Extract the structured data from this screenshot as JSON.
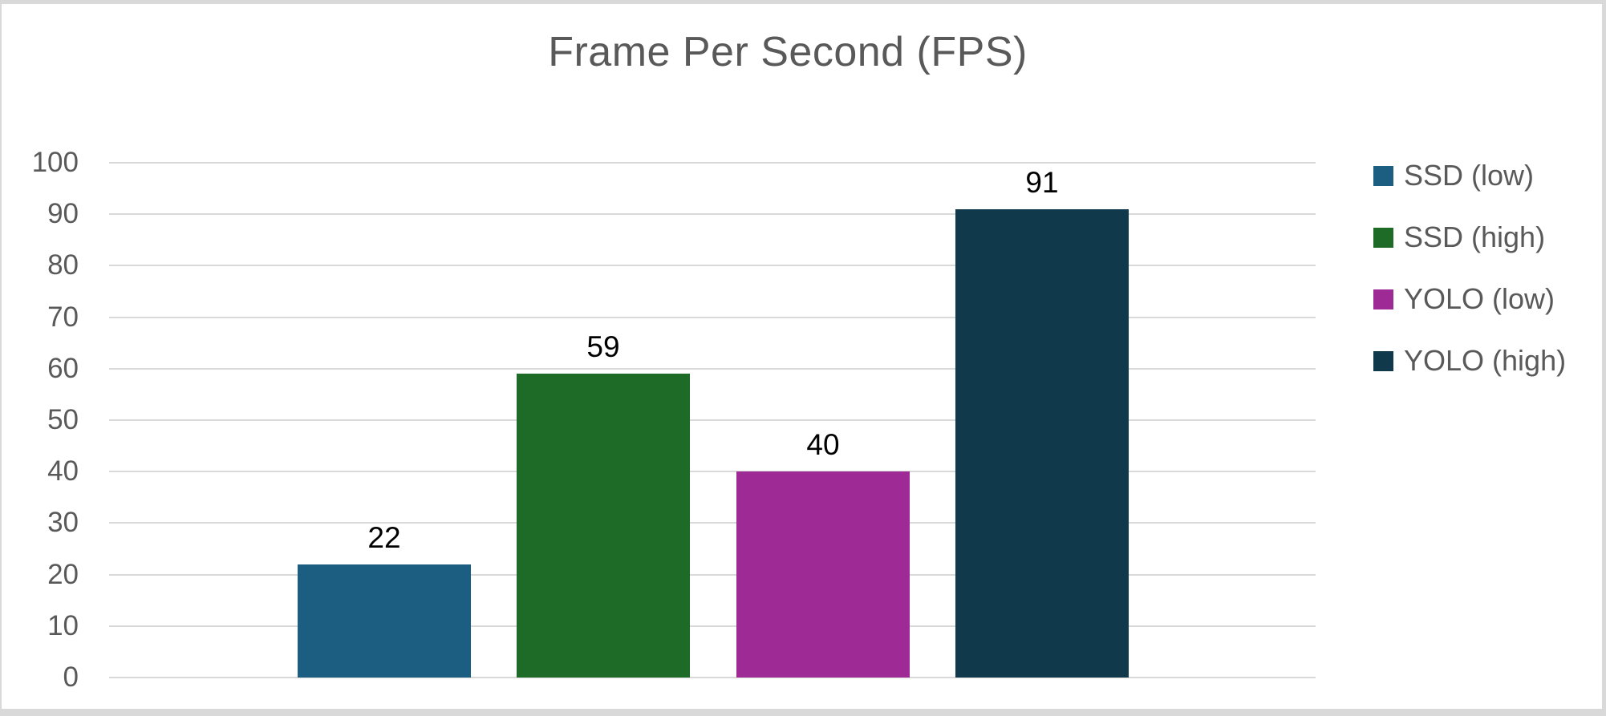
{
  "window": {
    "background": "#ffffff",
    "frame_border_color": "#d9d9d9"
  },
  "chart_data": {
    "type": "bar",
    "title": "Frame Per Second (FPS)",
    "categories": [
      "SSD (low)",
      "SSD (high)",
      "YOLO (low)",
      "YOLO (high)"
    ],
    "values": [
      22,
      59,
      40,
      91
    ],
    "data_labels": [
      "22",
      "59",
      "40",
      "91"
    ],
    "bar_colors": [
      "#1B5E82",
      "#1D6B26",
      "#9E2A96",
      "#11394C"
    ],
    "xlabel": "",
    "ylabel": "",
    "ylim": [
      0,
      100
    ],
    "yticks": [
      0,
      10,
      20,
      30,
      40,
      50,
      60,
      70,
      80,
      90,
      100
    ],
    "grid": true,
    "gridline_color": "#D9D9D9",
    "title_color": "#595959",
    "axis_text_color": "#595959",
    "data_label_color": "#000000",
    "legend_position": "right",
    "legend": [
      {
        "label": "SSD (low)",
        "color": "#1B5E82"
      },
      {
        "label": "SSD (high)",
        "color": "#1D6B26"
      },
      {
        "label": "YOLO (low)",
        "color": "#9E2A96"
      },
      {
        "label": "YOLO (high)",
        "color": "#11394C"
      }
    ]
  }
}
